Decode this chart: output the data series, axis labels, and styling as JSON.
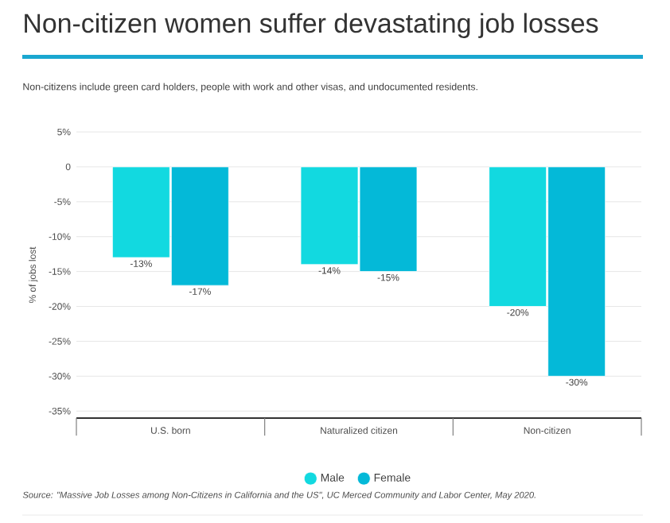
{
  "chart_data": {
    "type": "bar",
    "title": "Non-citizen women suffer devastating job losses",
    "subtitle": "Non-citizens include green card holders, people with work and other visas, and undocumented residents.",
    "ylabel": "% of jobs lost",
    "categories": [
      "U.S. born",
      "Naturalized citizen",
      "Non-citizen"
    ],
    "series": [
      {
        "name": "Male",
        "color": "#12d9e0",
        "values": [
          -13,
          -14,
          -20
        ],
        "value_labels": [
          "-13%",
          "-14%",
          "-20%"
        ]
      },
      {
        "name": "Female",
        "color": "#04b9d8",
        "values": [
          -17,
          -15,
          -30
        ],
        "value_labels": [
          "-17%",
          "-15%",
          "-30%"
        ]
      }
    ],
    "ylim": [
      -36,
      5
    ],
    "yticks": [
      {
        "value": 5,
        "label": "5%"
      },
      0,
      {
        "value": -5,
        "label": "-5%"
      },
      {
        "value": -10,
        "label": "-10%"
      },
      {
        "value": -15,
        "label": "-15%"
      },
      {
        "value": -20,
        "label": "-20%"
      },
      {
        "value": -25,
        "label": "-25%"
      },
      {
        "value": -30,
        "label": "-30%"
      },
      {
        "value": -35,
        "label": "-35%"
      }
    ],
    "grid": "y",
    "legend": "bottom",
    "annotations": [
      "Source: \"Massive Job Losses among Non-Citizens in California and the US\", UC Merced Community and Labor Center, May 2020."
    ]
  }
}
